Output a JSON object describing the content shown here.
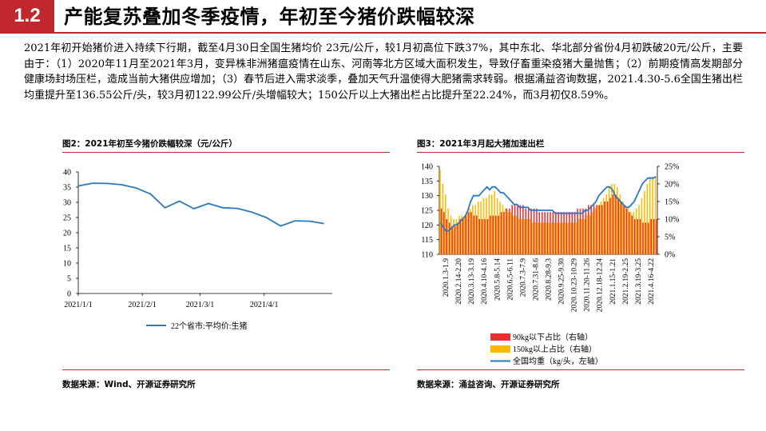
{
  "header": {
    "section_number": "1.2",
    "title": "产能复苏叠加冬季疫情，年初至今猪价跌幅较深"
  },
  "paragraph": "2021年初开始猪价进入持续下行期，截至4月30日全国生猪均价 23元/公斤，较1月初高位下跌37%，其中东北、华北部分省份4月初跌破20元/公斤，主要由于：（1）2020年11月至2021年3月，变异株非洲猪瘟疫情在山东、河南等北方区域大面积发生，导致仔畜重染疫猪大量抛售；（2）前期疫情高发期部分健康场封场压栏，造成当前大猪供应增加；（3）春节后进入需求淡季，叠加天气升温使得大肥猪需求转弱。根据涌益咨询数据，2021.4.30-5.6全国生猪出栏均重提升至136.55公斤/头，较3月初122.99公斤/头增幅较大；150公斤以上大猪出栏占比提升至22.24%，而3月初仅8.59%。",
  "figure2": {
    "title": "图2：2021年初至今猪价跌幅较深（元/公斤）",
    "source": "数据来源：Wind、开源证券研究所"
  },
  "figure3": {
    "title": "图3：2021年3月起大猪加速出栏",
    "source": "数据来源：涌益咨询、开源证券研究所"
  },
  "colors": {
    "accent": "#c0282e",
    "line_blue": "#2b79c1",
    "bar_red": "#e8312e",
    "bar_orange": "#fcb900"
  },
  "chart_data": [
    {
      "type": "line",
      "title": "",
      "ylim": [
        0,
        40
      ],
      "yticks": [
        "0",
        "5",
        "10",
        "15",
        "20",
        "25",
        "30",
        "35",
        "40"
      ],
      "xticks": [
        "2021/1/1",
        "2021/2/1",
        "2021/3/1",
        "2021/4/1"
      ],
      "grid": false,
      "legend_position": "bottom",
      "series": [
        {
          "name": "22个省市:平均价:生猪",
          "x": [
            "2021-01-01",
            "2021-01-08",
            "2021-01-15",
            "2021-01-22",
            "2021-01-29",
            "2021-02-05",
            "2021-02-12",
            "2021-02-19",
            "2021-02-26",
            "2021-03-05",
            "2021-03-12",
            "2021-03-19",
            "2021-03-26",
            "2021-04-02",
            "2021-04-09",
            "2021-04-16",
            "2021-04-23",
            "2021-04-30"
          ],
          "values": [
            35.4,
            36.3,
            36.2,
            35.8,
            34.7,
            32.7,
            28.2,
            30.4,
            27.9,
            29.6,
            28.2,
            28.0,
            26.8,
            25.0,
            22.2,
            23.9,
            23.8,
            23.0
          ]
        }
      ]
    },
    {
      "type": "bar",
      "title": "",
      "left_axis": {
        "ylim": [
          110,
          140
        ],
        "ticks": [
          "110",
          "115",
          "120",
          "125",
          "130",
          "135",
          "140"
        ]
      },
      "right_axis": {
        "ylim": [
          0,
          25
        ],
        "ticks": [
          "0%",
          "5%",
          "10%",
          "15%",
          "20%",
          "25%"
        ]
      },
      "xticks": [
        "2020.1.3-1.9",
        "2020.2.14-2.20",
        "2020.3.13-3.19",
        "2020.4.10-4.16",
        "2020.5.8-5.14",
        "2020.6.5-6.11",
        "2020.7.3-7.9",
        "2020.7.31-8.6",
        "2020.8.28-9.3",
        "2020.9.25-9.30",
        "2020.10.23-10.29",
        "2020.11.20-11.26",
        "2020.12.18-12.24",
        "2021.1.15-1.21",
        "2021.2.19-2.25",
        "2021.3.19-3.25",
        "2021.4.16-4.22"
      ],
      "legend_position": "bottom-right",
      "series": [
        {
          "name": "90kg以下占比（右轴）",
          "axis": "right",
          "values": [
            13,
            12,
            10,
            9,
            8,
            8,
            9,
            10,
            10,
            11,
            12,
            12,
            11,
            11,
            10,
            10,
            10,
            10,
            11,
            11,
            11,
            11,
            12,
            12,
            13,
            13,
            14,
            14,
            14,
            14,
            14,
            13,
            13,
            13,
            13,
            13,
            12,
            12,
            12,
            12,
            12,
            12,
            12,
            12,
            12,
            12,
            12,
            12,
            12,
            12,
            13,
            13,
            13,
            13,
            14,
            14,
            14,
            14,
            14,
            14,
            15,
            15,
            16,
            17,
            17,
            16,
            15,
            14,
            13,
            12,
            11,
            10,
            10,
            10,
            9,
            9,
            9,
            10,
            10,
            10
          ]
        },
        {
          "name": "150kg以上占比（右轴）",
          "axis": "right",
          "values": [
            24,
            20,
            17,
            13,
            11,
            10,
            10,
            11,
            11,
            11,
            12,
            13,
            14,
            14,
            15,
            15,
            16,
            16,
            17,
            17,
            18,
            16,
            15,
            14,
            13,
            12,
            12,
            11,
            11,
            10,
            10,
            10,
            10,
            10,
            9,
            9,
            9,
            9,
            9,
            9,
            9,
            9,
            9,
            9,
            9,
            9,
            9,
            9,
            9,
            9,
            9,
            10,
            10,
            10,
            11,
            11,
            12,
            13,
            14,
            15,
            16,
            17,
            19,
            20,
            20,
            19,
            17,
            15,
            14,
            13,
            12,
            12,
            13,
            14,
            16,
            18,
            20,
            22,
            22,
            22
          ]
        },
        {
          "name": "全国均重（kg/头，左轴）",
          "axis": "left",
          "type": "line",
          "values": [
            121,
            119,
            118,
            118,
            119,
            120,
            120,
            121,
            122,
            123,
            125,
            128,
            130,
            130,
            130,
            131,
            132,
            133,
            132,
            133,
            133,
            132,
            131,
            131,
            130,
            129,
            128,
            127,
            127,
            126,
            126,
            126,
            126,
            125,
            125,
            125,
            125,
            125,
            125,
            125,
            125,
            125,
            124,
            124,
            124,
            124,
            124,
            124,
            124,
            124,
            124,
            124,
            124,
            125,
            125,
            126,
            127,
            128,
            130,
            131,
            132,
            133,
            133,
            132,
            130,
            129,
            128,
            127,
            126,
            126,
            127,
            128,
            130,
            132,
            134,
            135,
            136,
            136,
            136,
            136.5
          ]
        }
      ]
    }
  ]
}
